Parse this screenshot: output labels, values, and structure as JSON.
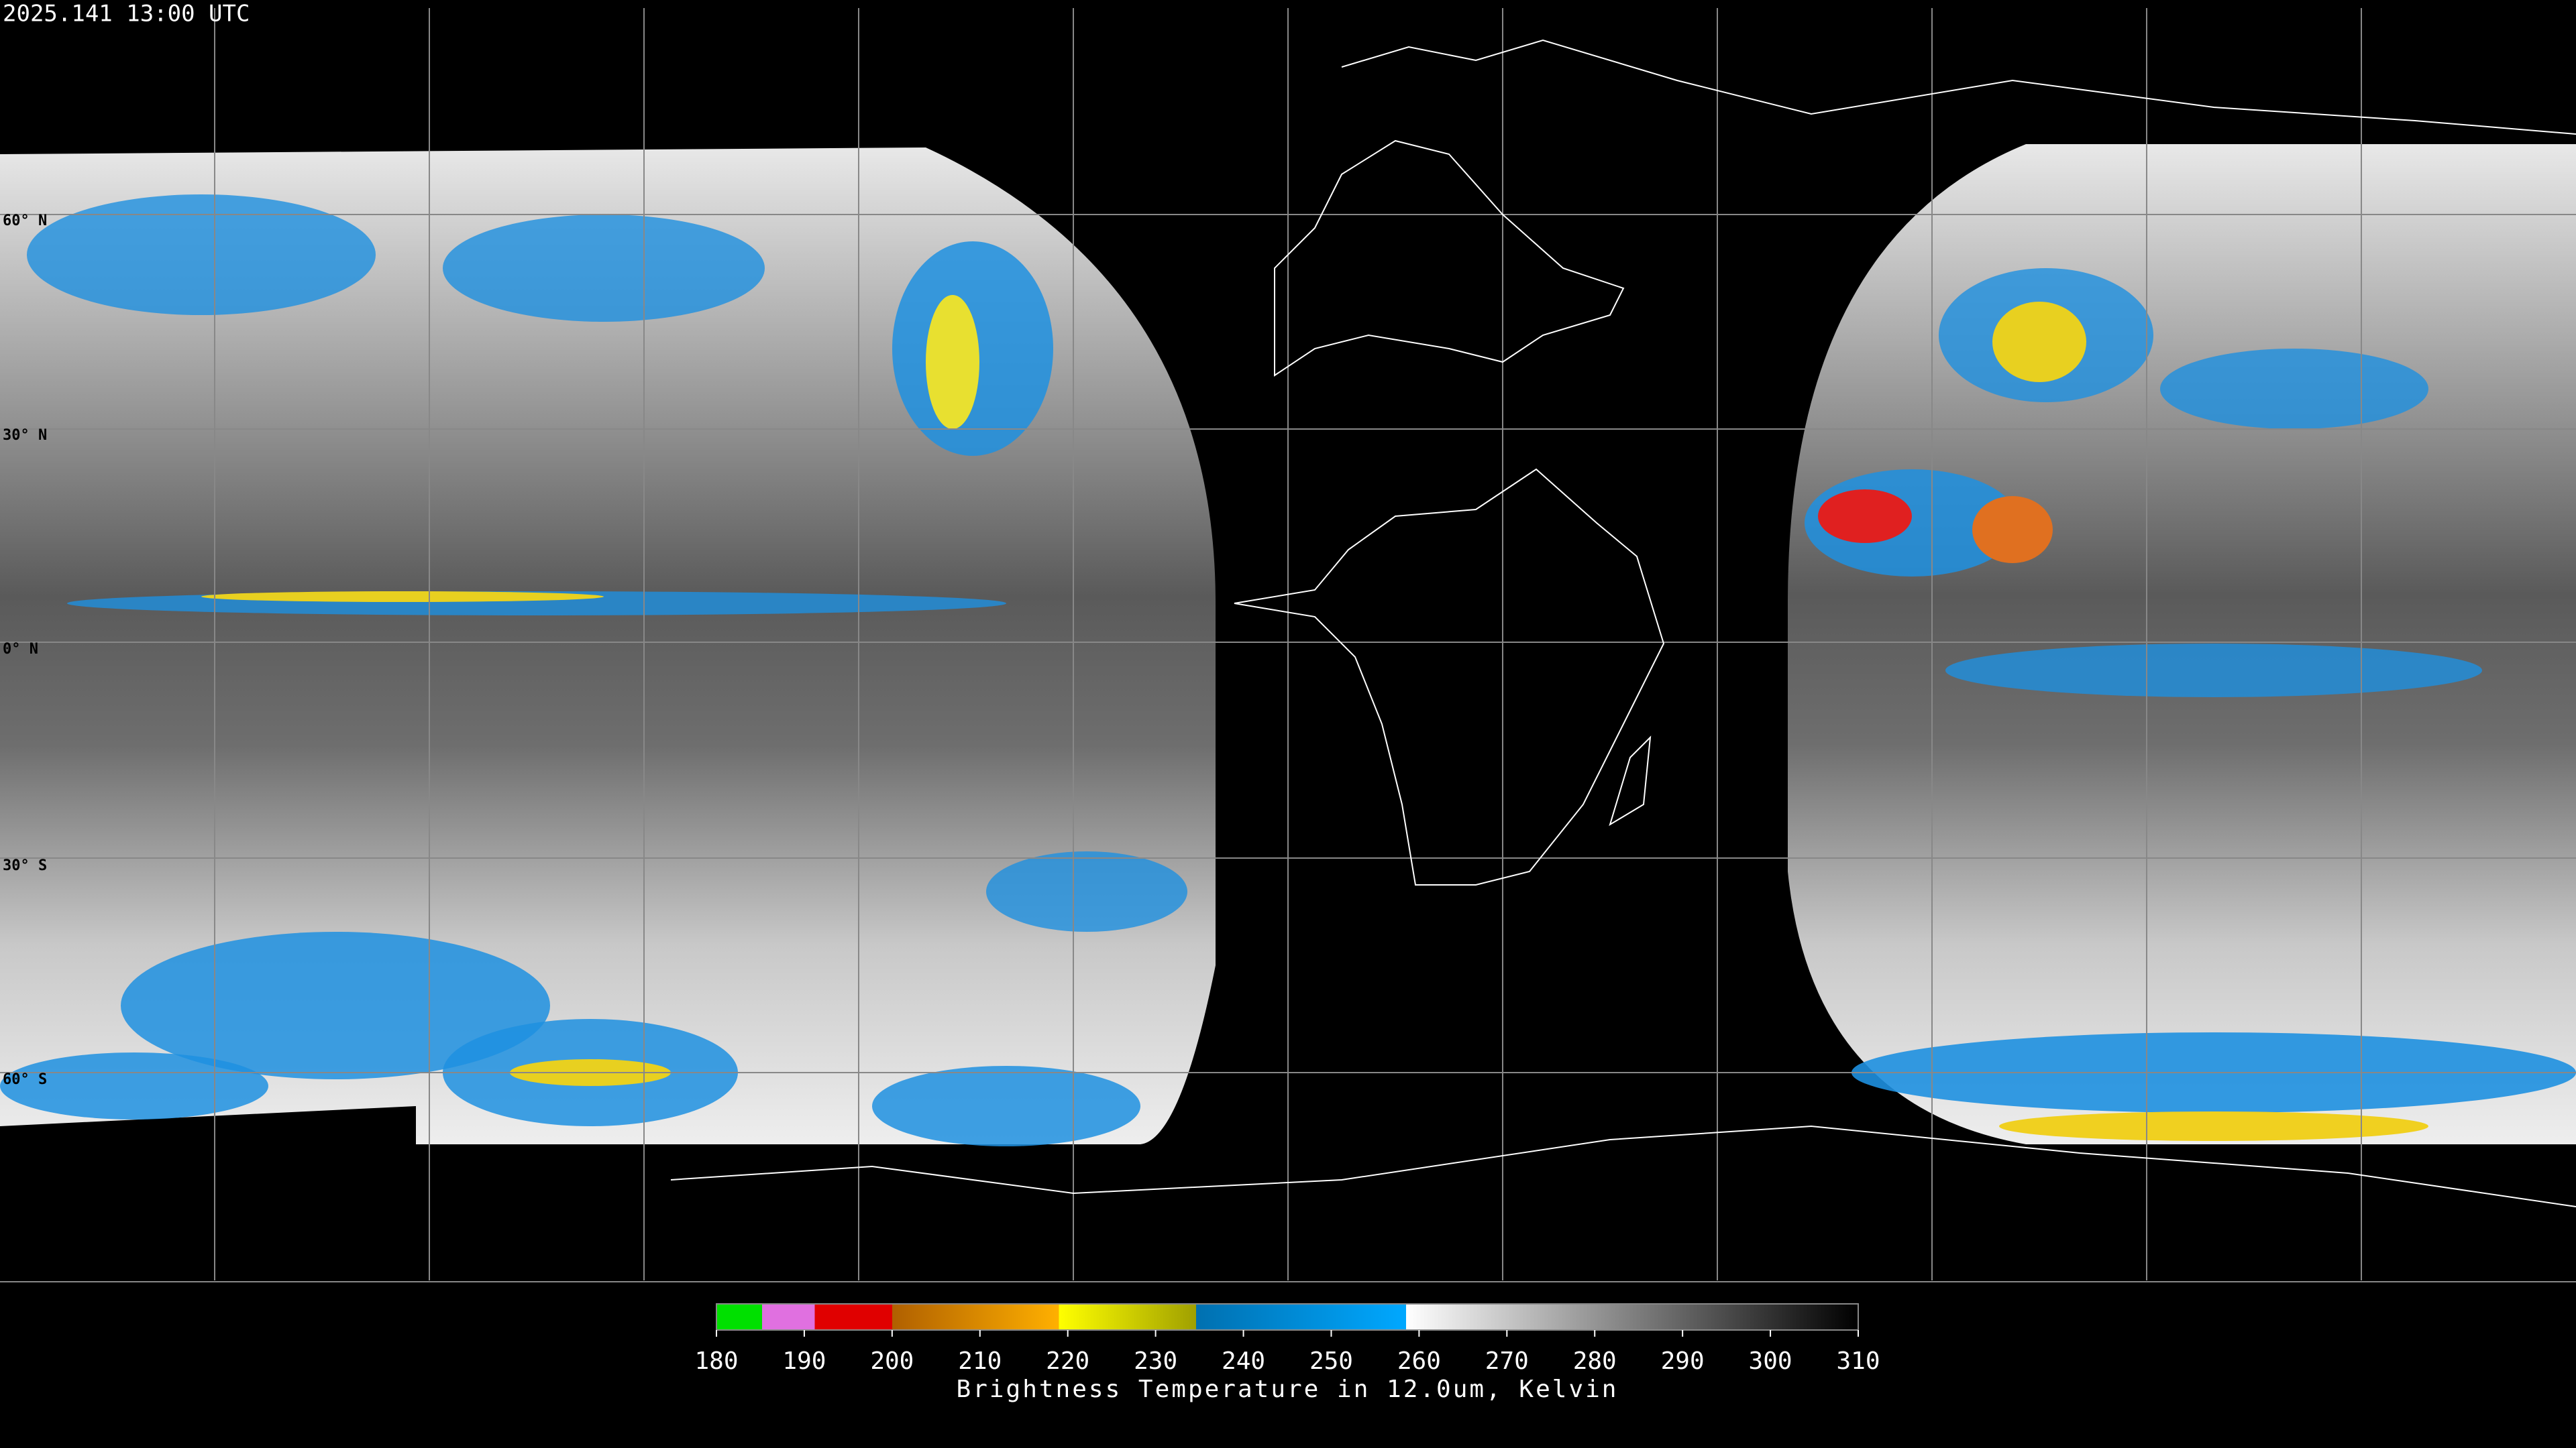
{
  "header": {
    "title": "2025.141 13:00 UTC"
  },
  "latitude_labels": [
    "60° N",
    "30° N",
    "0° N",
    "30° S",
    "60° S"
  ],
  "colorbar": {
    "label": "Brightness Temperature in 12.0um, Kelvin",
    "range": [
      180,
      310
    ],
    "ticks": [
      180,
      190,
      200,
      210,
      220,
      230,
      240,
      250,
      260,
      270,
      280,
      290,
      300,
      310
    ]
  }
}
